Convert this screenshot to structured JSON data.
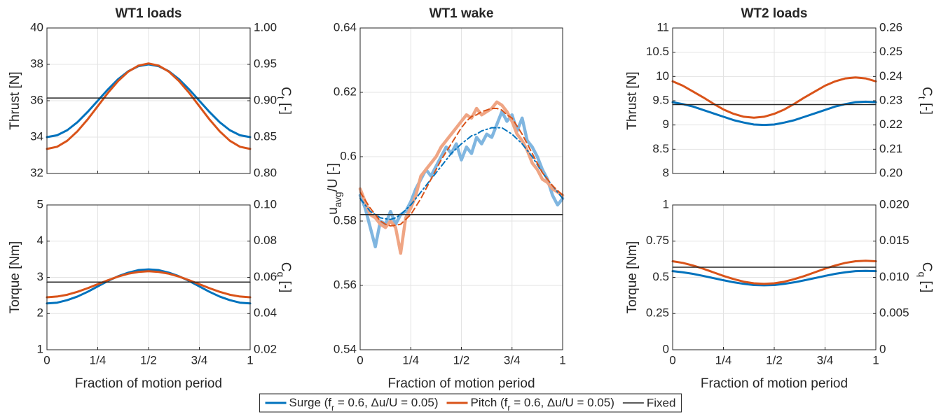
{
  "chart_data": [
    {
      "type": "line",
      "title": "WT1 loads",
      "ylabel": "Thrust [N]",
      "y2label": [
        "C",
        {
          "sub": "t"
        },
        " [-]"
      ],
      "x": [
        0,
        0.05,
        0.1,
        0.15,
        0.2,
        0.25,
        0.3,
        0.35,
        0.4,
        0.45,
        0.5,
        0.55,
        0.6,
        0.65,
        0.7,
        0.75,
        0.8,
        0.85,
        0.9,
        0.95,
        1
      ],
      "xlim": [
        0,
        1
      ],
      "xticks": [
        0,
        0.25,
        0.5,
        0.75,
        1
      ],
      "ylim": [
        32,
        40
      ],
      "yticks": [
        32,
        34,
        36,
        38,
        40
      ],
      "y2lim": [
        0.8,
        1.0
      ],
      "y2ticks": [
        {
          "value": 0.8,
          "label": "0.80"
        },
        0.85,
        {
          "value": 0.9,
          "label": "0.90"
        },
        0.95,
        {
          "value": 1.0,
          "label": "1.00"
        }
      ],
      "grid": true,
      "series": [
        {
          "name": [
            "Surge (f",
            {
              "sub": "r"
            },
            " = 0.6, Δu/U = 0.05)"
          ],
          "color": "#0072BD",
          "width": 3,
          "values": [
            34.0,
            34.1,
            34.38,
            34.82,
            35.38,
            36.0,
            36.62,
            37.18,
            37.62,
            37.9,
            38.0,
            37.9,
            37.62,
            37.18,
            36.62,
            36.0,
            35.38,
            34.82,
            34.38,
            34.1,
            34.0
          ]
        },
        {
          "name": [
            "Pitch (f",
            {
              "sub": "r"
            },
            " = 0.6, Δu/U = 0.05)"
          ],
          "color": "#D95319",
          "width": 3,
          "values": [
            33.35,
            33.47,
            33.8,
            34.32,
            34.97,
            35.7,
            36.43,
            37.08,
            37.6,
            37.93,
            38.05,
            37.93,
            37.6,
            37.08,
            36.43,
            35.7,
            34.97,
            34.32,
            33.8,
            33.47,
            33.35
          ]
        },
        {
          "name": "Fixed",
          "color": "#262626",
          "width": 1.5,
          "values": [
            36.15,
            36.15,
            36.15,
            36.15,
            36.15,
            36.15,
            36.15,
            36.15,
            36.15,
            36.15,
            36.15,
            36.15,
            36.15,
            36.15,
            36.15,
            36.15,
            36.15,
            36.15,
            36.15,
            36.15,
            36.15
          ]
        }
      ]
    },
    {
      "type": "line",
      "xlabel": "Fraction of motion period",
      "ylabel": "Torque [Nm]",
      "y2label": [
        "C",
        {
          "sub": "q"
        },
        " [-]"
      ],
      "x": [
        0,
        0.05,
        0.1,
        0.15,
        0.2,
        0.25,
        0.3,
        0.35,
        0.4,
        0.45,
        0.5,
        0.55,
        0.6,
        0.65,
        0.7,
        0.75,
        0.8,
        0.85,
        0.9,
        0.95,
        1
      ],
      "xlim": [
        0,
        1
      ],
      "xticks": [
        0,
        {
          "value": 0.25,
          "label": "1/4"
        },
        {
          "value": 0.5,
          "label": "1/2"
        },
        {
          "value": 0.75,
          "label": "3/4"
        },
        1
      ],
      "ylim": [
        1,
        5
      ],
      "yticks": [
        1,
        2,
        3,
        4,
        5
      ],
      "y2lim": [
        0.02,
        0.1
      ],
      "y2ticks": [
        0.02,
        0.04,
        0.06,
        0.08,
        {
          "value": 0.1,
          "label": "0.10"
        }
      ],
      "grid": true,
      "series": [
        {
          "color": "#0072BD",
          "width": 3,
          "values": [
            2.28,
            2.3,
            2.37,
            2.47,
            2.6,
            2.75,
            2.9,
            3.03,
            3.13,
            3.2,
            3.22,
            3.2,
            3.13,
            3.03,
            2.9,
            2.75,
            2.6,
            2.47,
            2.37,
            2.3,
            2.28
          ]
        },
        {
          "color": "#D95319",
          "width": 3,
          "values": [
            2.45,
            2.47,
            2.52,
            2.6,
            2.7,
            2.81,
            2.92,
            3.02,
            3.1,
            3.15,
            3.17,
            3.15,
            3.1,
            3.02,
            2.92,
            2.81,
            2.7,
            2.6,
            2.52,
            2.47,
            2.45
          ]
        },
        {
          "color": "#262626",
          "width": 1.5,
          "values": [
            2.87,
            2.87,
            2.87,
            2.87,
            2.87,
            2.87,
            2.87,
            2.87,
            2.87,
            2.87,
            2.87,
            2.87,
            2.87,
            2.87,
            2.87,
            2.87,
            2.87,
            2.87,
            2.87,
            2.87,
            2.87
          ]
        }
      ]
    },
    {
      "type": "line",
      "title": "WT1 wake",
      "xlabel": "Fraction of motion period",
      "ylabel": [
        "u",
        {
          "sub": "avg"
        },
        "/U [-]"
      ],
      "x": [
        0,
        0.025,
        0.05,
        0.075,
        0.1,
        0.125,
        0.15,
        0.175,
        0.2,
        0.225,
        0.25,
        0.275,
        0.3,
        0.325,
        0.35,
        0.375,
        0.4,
        0.425,
        0.45,
        0.475,
        0.5,
        0.525,
        0.55,
        0.575,
        0.6,
        0.625,
        0.65,
        0.675,
        0.7,
        0.725,
        0.75,
        0.775,
        0.8,
        0.825,
        0.85,
        0.875,
        0.9,
        0.925,
        0.95,
        0.975,
        1
      ],
      "xlim": [
        0,
        1
      ],
      "xticks": [
        0,
        {
          "value": 0.25,
          "label": "1/4"
        },
        {
          "value": 0.5,
          "label": "1/2"
        },
        {
          "value": 0.75,
          "label": "3/4"
        },
        1
      ],
      "ylim": [
        0.54,
        0.64
      ],
      "yticks": [
        0.54,
        0.56,
        0.58,
        0.6,
        0.62,
        0.64
      ],
      "grid": true,
      "series": [
        {
          "color": "#80B6E0",
          "width": 4.5,
          "values": [
            0.588,
            0.584,
            0.578,
            0.572,
            0.58,
            0.579,
            0.583,
            0.579,
            0.582,
            0.583,
            0.586,
            0.59,
            0.593,
            0.596,
            0.594,
            0.597,
            0.6,
            0.603,
            0.601,
            0.604,
            0.599,
            0.603,
            0.601,
            0.606,
            0.604,
            0.607,
            0.606,
            0.61,
            0.614,
            0.611,
            0.613,
            0.608,
            0.612,
            0.605,
            0.603,
            0.6,
            0.596,
            0.593,
            0.588,
            0.585,
            0.587
          ]
        },
        {
          "color": "#EFA584",
          "width": 4.5,
          "values": [
            0.59,
            0.586,
            0.582,
            0.581,
            0.579,
            0.578,
            0.58,
            0.578,
            0.57,
            0.581,
            0.584,
            0.588,
            0.594,
            0.596,
            0.598,
            0.6,
            0.603,
            0.605,
            0.607,
            0.609,
            0.611,
            0.613,
            0.612,
            0.615,
            0.613,
            0.614,
            0.615,
            0.617,
            0.616,
            0.614,
            0.611,
            0.607,
            0.605,
            0.602,
            0.598,
            0.596,
            0.593,
            0.592,
            0.59,
            0.589,
            0.588
          ]
        },
        {
          "color": "#0072BD",
          "width": 2,
          "dash": "dashdot",
          "values": [
            0.587,
            0.585,
            0.583,
            0.582,
            0.581,
            0.5807,
            0.5805,
            0.581,
            0.582,
            0.5835,
            0.585,
            0.587,
            0.589,
            0.591,
            0.593,
            0.595,
            0.597,
            0.599,
            0.601,
            0.6025,
            0.604,
            0.6052,
            0.6065,
            0.607,
            0.608,
            0.6085,
            0.609,
            0.609,
            0.609,
            0.608,
            0.607,
            0.6055,
            0.604,
            0.602,
            0.6,
            0.5975,
            0.595,
            0.593,
            0.591,
            0.589,
            0.587
          ]
        },
        {
          "color": "#D95319",
          "width": 2,
          "dash": "dashed",
          "values": [
            0.589,
            0.5865,
            0.584,
            0.582,
            0.58,
            0.579,
            0.5785,
            0.5787,
            0.579,
            0.5805,
            0.582,
            0.5845,
            0.587,
            0.59,
            0.593,
            0.596,
            0.599,
            0.6015,
            0.604,
            0.6065,
            0.609,
            0.611,
            0.6125,
            0.613,
            0.614,
            0.6145,
            0.615,
            0.615,
            0.6145,
            0.613,
            0.612,
            0.6095,
            0.607,
            0.604,
            0.601,
            0.598,
            0.595,
            0.593,
            0.591,
            0.5895,
            0.588
          ]
        },
        {
          "color": "#262626",
          "width": 1.5,
          "values": [
            0.582,
            0.582,
            0.582,
            0.582,
            0.582,
            0.582,
            0.582,
            0.582,
            0.582,
            0.582,
            0.582,
            0.582,
            0.582,
            0.582,
            0.582,
            0.582,
            0.582,
            0.582,
            0.582,
            0.582,
            0.582,
            0.582,
            0.582,
            0.582,
            0.582,
            0.582,
            0.582,
            0.582,
            0.582,
            0.582,
            0.582,
            0.582,
            0.582,
            0.582,
            0.582,
            0.582,
            0.582,
            0.582,
            0.582,
            0.582,
            0.582
          ]
        }
      ]
    },
    {
      "type": "line",
      "title": "WT2 loads",
      "ylabel": "Thrust [N]",
      "y2label": [
        "C",
        {
          "sub": "t"
        },
        " [-]"
      ],
      "x": [
        0,
        0.05,
        0.1,
        0.15,
        0.2,
        0.25,
        0.3,
        0.35,
        0.4,
        0.45,
        0.5,
        0.55,
        0.6,
        0.65,
        0.7,
        0.75,
        0.8,
        0.85,
        0.9,
        0.95,
        1
      ],
      "xlim": [
        0,
        1
      ],
      "xticks": [
        0,
        0.25,
        0.5,
        0.75,
        1
      ],
      "ylim": [
        8,
        11
      ],
      "yticks": [
        8,
        8.5,
        9,
        9.5,
        10,
        10.5,
        11
      ],
      "y2lim": [
        0.2,
        0.26
      ],
      "y2ticks": [
        {
          "value": 0.2,
          "label": "0.20"
        },
        0.21,
        0.22,
        0.23,
        0.24,
        0.25,
        0.26
      ],
      "grid": true,
      "series": [
        {
          "color": "#0072BD",
          "width": 3,
          "values": [
            9.47,
            9.43,
            9.38,
            9.31,
            9.24,
            9.17,
            9.1,
            9.05,
            9.01,
            9.0,
            9.01,
            9.05,
            9.1,
            9.17,
            9.24,
            9.31,
            9.38,
            9.43,
            9.47,
            9.48,
            9.47
          ]
        },
        {
          "color": "#D95319",
          "width": 3,
          "values": [
            9.9,
            9.81,
            9.69,
            9.57,
            9.44,
            9.32,
            9.23,
            9.17,
            9.15,
            9.17,
            9.23,
            9.32,
            9.44,
            9.57,
            9.69,
            9.81,
            9.9,
            9.96,
            9.98,
            9.96,
            9.9
          ]
        },
        {
          "color": "#262626",
          "width": 1.5,
          "values": [
            9.42,
            9.42,
            9.42,
            9.42,
            9.42,
            9.42,
            9.42,
            9.42,
            9.42,
            9.42,
            9.42,
            9.42,
            9.42,
            9.42,
            9.42,
            9.42,
            9.42,
            9.42,
            9.42,
            9.42,
            9.42
          ]
        }
      ]
    },
    {
      "type": "line",
      "xlabel": "Fraction of motion period",
      "ylabel": "Torque [Nm]",
      "y2label": [
        "C",
        {
          "sub": "q"
        },
        " [-]"
      ],
      "x": [
        0,
        0.05,
        0.1,
        0.15,
        0.2,
        0.25,
        0.3,
        0.35,
        0.4,
        0.45,
        0.5,
        0.55,
        0.6,
        0.65,
        0.7,
        0.75,
        0.8,
        0.85,
        0.9,
        0.95,
        1
      ],
      "xlim": [
        0,
        1
      ],
      "xticks": [
        0,
        {
          "value": 0.25,
          "label": "1/4"
        },
        {
          "value": 0.5,
          "label": "1/2"
        },
        {
          "value": 0.75,
          "label": "3/4"
        },
        1
      ],
      "ylim": [
        0,
        1
      ],
      "yticks": [
        0,
        0.25,
        0.5,
        0.75,
        1
      ],
      "y2lim": [
        0,
        0.02
      ],
      "y2ticks": [
        0,
        0.005,
        {
          "value": 0.01,
          "label": "0.010"
        },
        0.015,
        {
          "value": 0.02,
          "label": "0.020"
        }
      ],
      "grid": true,
      "series": [
        {
          "color": "#0072BD",
          "width": 3,
          "values": [
            0.543,
            0.535,
            0.524,
            0.51,
            0.495,
            0.48,
            0.466,
            0.455,
            0.447,
            0.445,
            0.447,
            0.455,
            0.466,
            0.48,
            0.495,
            0.51,
            0.524,
            0.535,
            0.543,
            0.545,
            0.543
          ]
        },
        {
          "color": "#D95319",
          "width": 3,
          "values": [
            0.611,
            0.6,
            0.582,
            0.56,
            0.535,
            0.51,
            0.488,
            0.47,
            0.459,
            0.455,
            0.459,
            0.47,
            0.488,
            0.51,
            0.535,
            0.56,
            0.582,
            0.6,
            0.611,
            0.615,
            0.611
          ]
        },
        {
          "color": "#262626",
          "width": 1.5,
          "values": [
            0.57,
            0.57,
            0.57,
            0.57,
            0.57,
            0.57,
            0.57,
            0.57,
            0.57,
            0.57,
            0.57,
            0.57,
            0.57,
            0.57,
            0.57,
            0.57,
            0.57,
            0.57,
            0.57,
            0.57,
            0.57
          ]
        }
      ]
    }
  ]
}
